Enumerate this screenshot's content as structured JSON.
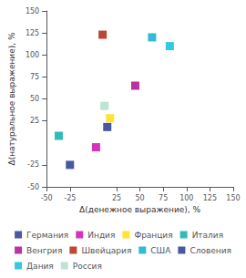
{
  "chart_data": {
    "type": "scatter",
    "xlabel": "Δ(денежное выражение), %",
    "ylabel": "Δ(натуральное выражение), %",
    "xlim": [
      -50,
      150
    ],
    "ylim": [
      -50,
      150
    ],
    "xticks": [
      -50,
      -25,
      25,
      50,
      75,
      100,
      125,
      150
    ],
    "yticks": [
      -50,
      -25,
      25,
      50,
      75,
      100,
      125,
      150
    ],
    "marker": "square",
    "grid": false,
    "legend": "bottom",
    "series": [
      {
        "name": "Германия",
        "color": "#1a2f8a",
        "x": [
          -25
        ],
        "y": [
          -25
        ]
      },
      {
        "name": "Индия",
        "color": "#cc00aa",
        "x": [
          3
        ],
        "y": [
          -5
        ]
      },
      {
        "name": "Франция",
        "color": "#ffdd00",
        "x": [
          18
        ],
        "y": [
          28
        ]
      },
      {
        "name": "Италия",
        "color": "#00aaaa",
        "x": [
          -37
        ],
        "y": [
          8
        ]
      },
      {
        "name": "Венгрия",
        "color": "#aa0088",
        "x": [
          45
        ],
        "y": [
          65
        ]
      },
      {
        "name": "Швейцария",
        "color": "#aa1a00",
        "x": [
          10
        ],
        "y": [
          123
        ]
      },
      {
        "name": "США",
        "color": "#00aacc",
        "x": [
          63
        ],
        "y": [
          120
        ]
      },
      {
        "name": "Словения",
        "color": "#1a2f8a",
        "x": [
          15
        ],
        "y": [
          18
        ]
      },
      {
        "name": "Дания",
        "color": "#00bbdd",
        "x": [
          82
        ],
        "y": [
          110
        ]
      },
      {
        "name": "Россия",
        "color": "#aaddc8",
        "x": [
          12
        ],
        "y": [
          42
        ]
      }
    ]
  }
}
